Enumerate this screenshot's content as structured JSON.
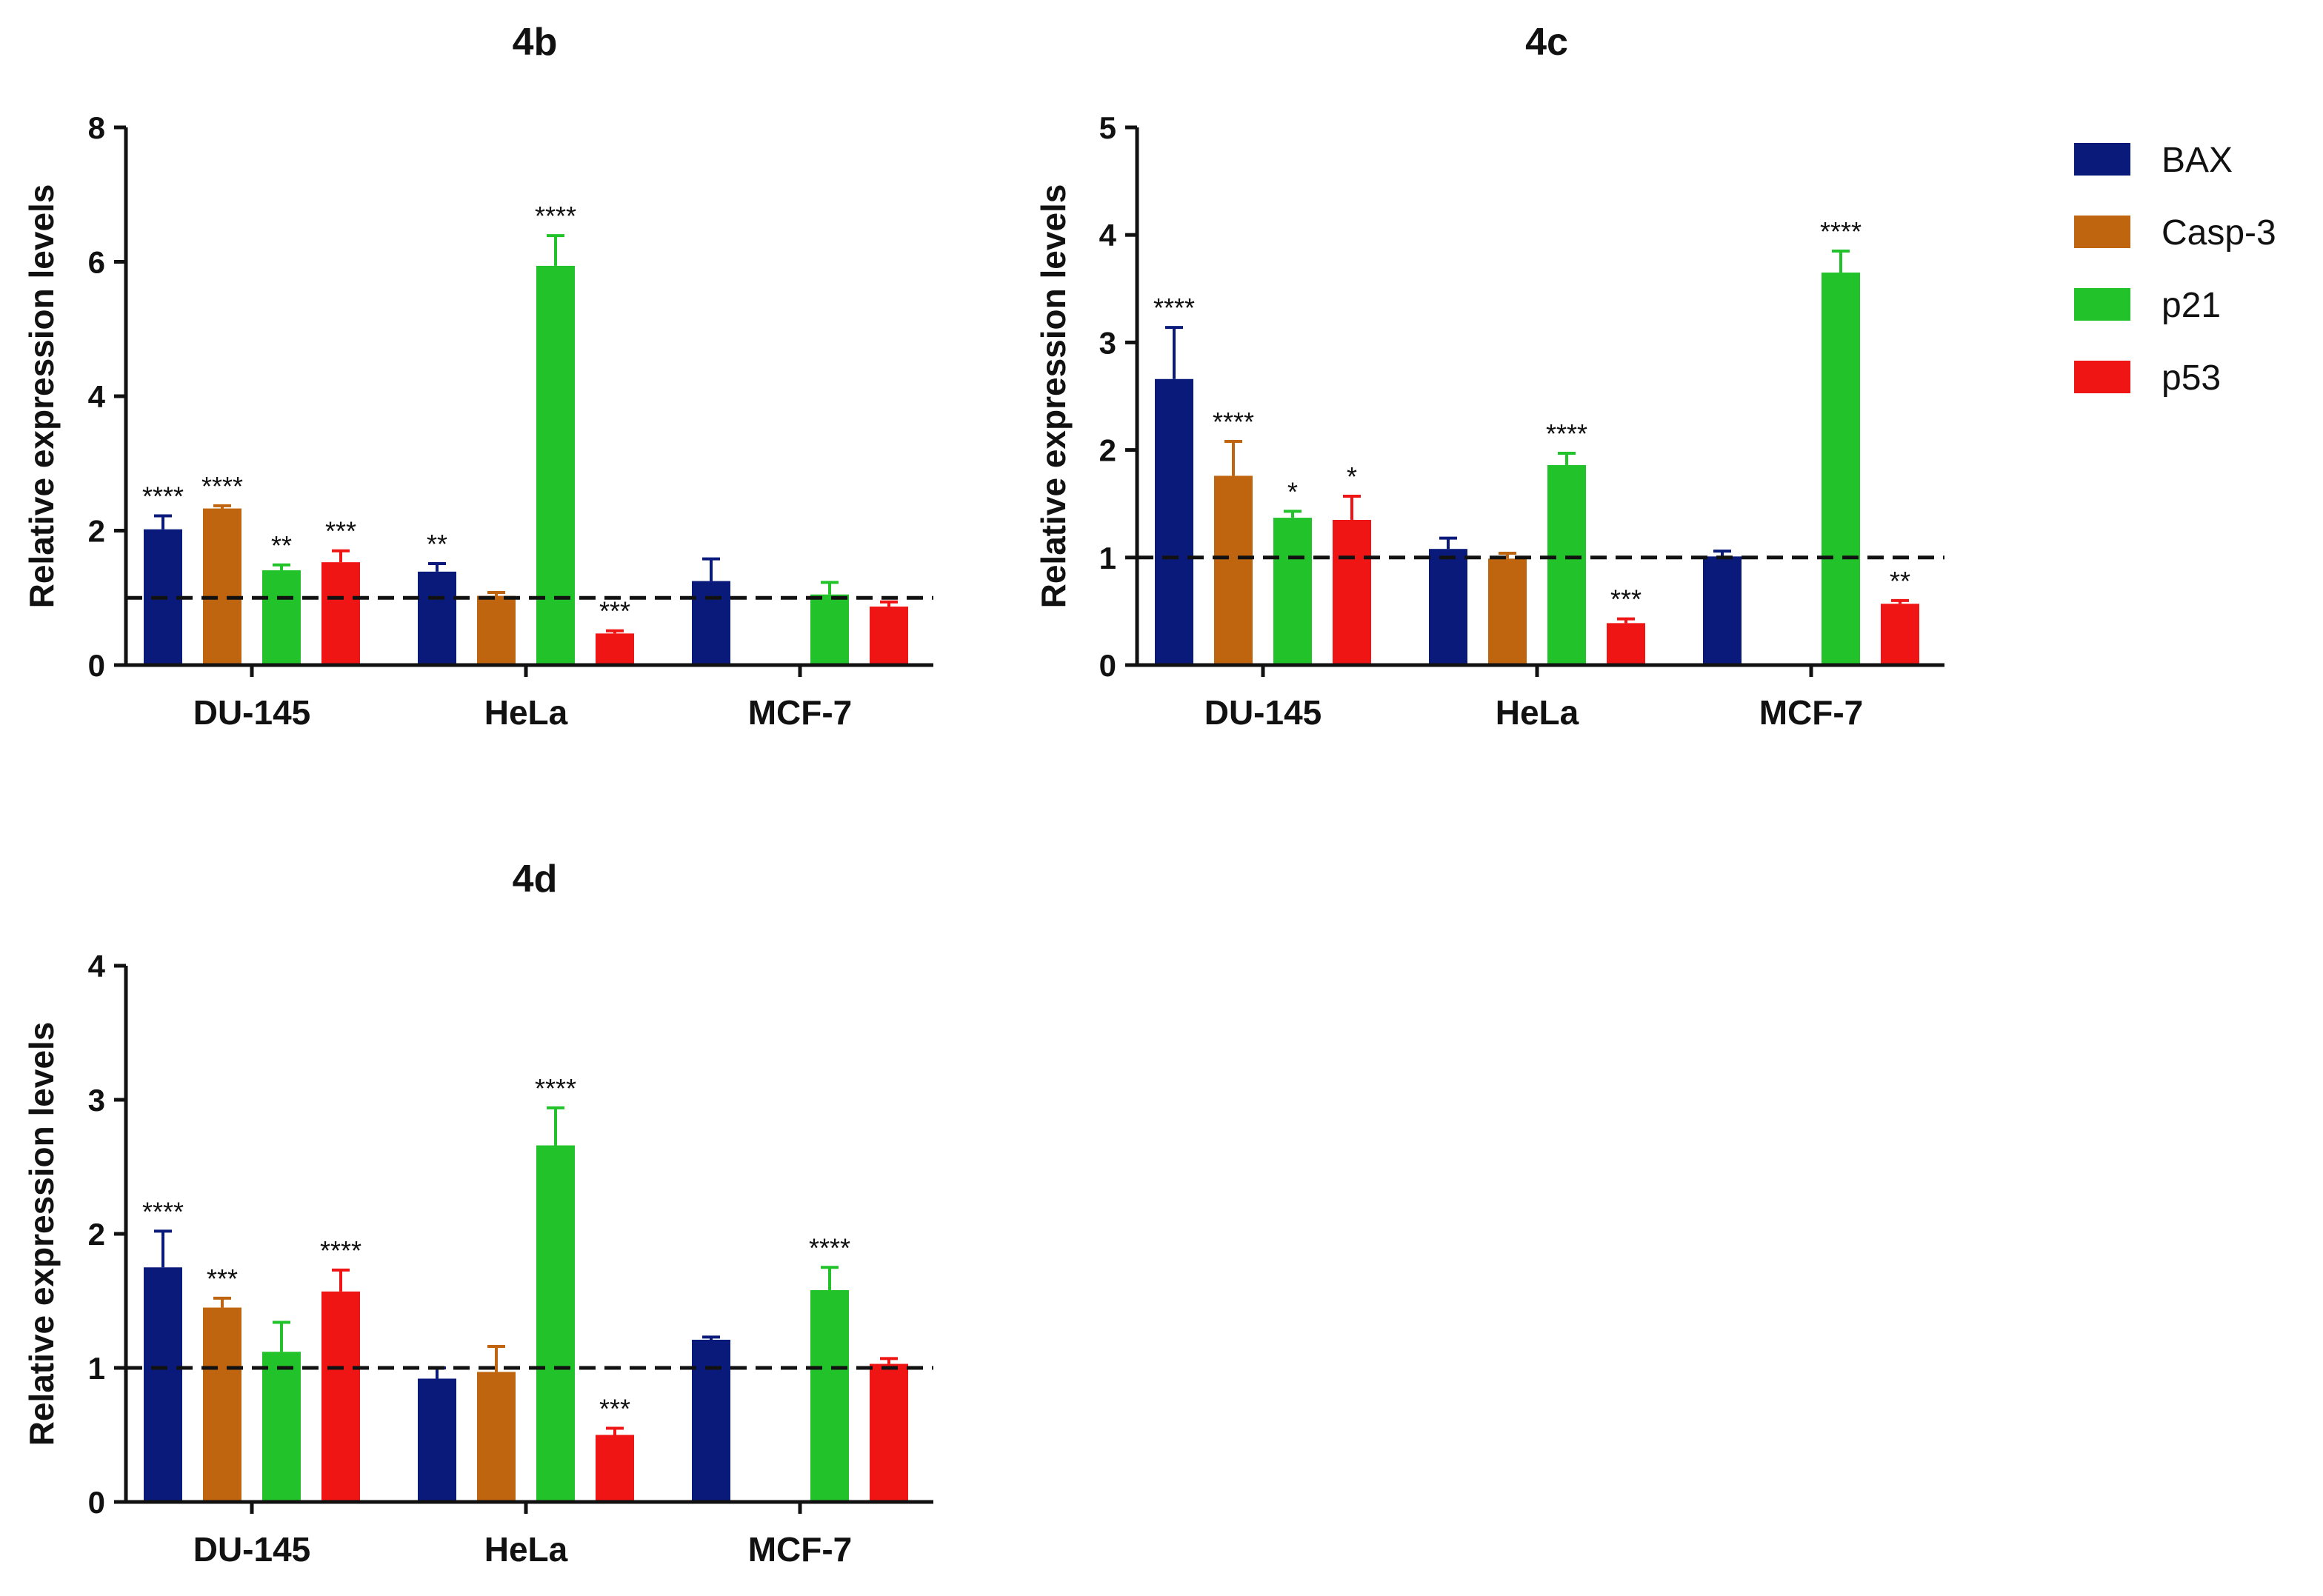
{
  "chart_data": [
    {
      "type": "bar",
      "title": "4b",
      "xlabel": "",
      "ylabel": "Relative expression levels",
      "ylim": [
        0,
        8
      ],
      "yticks": [
        0,
        2,
        4,
        6,
        8
      ],
      "reference_line": 1,
      "categories": [
        "DU-145",
        "HeLa",
        "MCF-7"
      ],
      "series": [
        {
          "name": "BAX",
          "values": [
            2.02,
            1.39,
            1.25
          ],
          "errors": [
            0.2,
            0.12,
            0.33
          ],
          "significance": [
            "****",
            "**",
            ""
          ]
        },
        {
          "name": "Casp-3",
          "values": [
            2.33,
            1.03,
            null
          ],
          "errors": [
            0.04,
            0.05,
            null
          ],
          "significance": [
            "****",
            "",
            ""
          ]
        },
        {
          "name": "p21",
          "values": [
            1.41,
            5.94,
            1.05
          ],
          "errors": [
            0.08,
            0.45,
            0.18
          ],
          "significance": [
            "**",
            "****",
            ""
          ]
        },
        {
          "name": "p53",
          "values": [
            1.53,
            0.47,
            0.87
          ],
          "errors": [
            0.17,
            0.04,
            0.07
          ],
          "significance": [
            "***",
            "***",
            ""
          ]
        }
      ]
    },
    {
      "type": "bar",
      "title": "4c",
      "xlabel": "",
      "ylabel": "Relative expression levels",
      "ylim": [
        0,
        5
      ],
      "yticks": [
        0,
        1,
        2,
        3,
        4,
        5
      ],
      "reference_line": 1,
      "categories": [
        "DU-145",
        "HeLa",
        "MCF-7"
      ],
      "series": [
        {
          "name": "BAX",
          "values": [
            2.66,
            1.08,
            1.01
          ],
          "errors": [
            0.48,
            0.1,
            0.05
          ],
          "significance": [
            "****",
            "",
            ""
          ]
        },
        {
          "name": "Casp-3",
          "values": [
            1.76,
            0.99,
            null
          ],
          "errors": [
            0.32,
            0.05,
            null
          ],
          "significance": [
            "****",
            "",
            ""
          ]
        },
        {
          "name": "p21",
          "values": [
            1.37,
            1.86,
            3.65
          ],
          "errors": [
            0.06,
            0.11,
            0.2
          ],
          "significance": [
            "*",
            "****",
            "****"
          ]
        },
        {
          "name": "p53",
          "values": [
            1.35,
            0.39,
            0.57
          ],
          "errors": [
            0.22,
            0.04,
            0.03
          ],
          "significance": [
            "*",
            "***",
            "**"
          ]
        }
      ]
    },
    {
      "type": "bar",
      "title": "4d",
      "xlabel": "",
      "ylabel": "Relative expression levels",
      "ylim": [
        0,
        4
      ],
      "yticks": [
        0,
        1,
        2,
        3,
        4
      ],
      "reference_line": 1,
      "categories": [
        "DU-145",
        "HeLa",
        "MCF-7"
      ],
      "series": [
        {
          "name": "BAX",
          "values": [
            1.75,
            0.92,
            1.21
          ],
          "errors": [
            0.27,
            0.08,
            0.02
          ],
          "significance": [
            "****",
            "",
            ""
          ]
        },
        {
          "name": "Casp-3",
          "values": [
            1.45,
            0.97,
            null
          ],
          "errors": [
            0.07,
            0.19,
            null
          ],
          "significance": [
            "***",
            "",
            ""
          ]
        },
        {
          "name": "p21",
          "values": [
            1.12,
            2.66,
            1.58
          ],
          "errors": [
            0.22,
            0.28,
            0.17
          ],
          "significance": [
            "",
            "****",
            "****"
          ]
        },
        {
          "name": "p53",
          "values": [
            1.57,
            0.5,
            1.03
          ],
          "errors": [
            0.16,
            0.05,
            0.04
          ],
          "significance": [
            "****",
            "***",
            ""
          ]
        }
      ]
    }
  ],
  "legend": {
    "items": [
      {
        "label": "BAX",
        "color": "#0a1a7a"
      },
      {
        "label": "Casp-3",
        "color": "#c0650f"
      },
      {
        "label": "p21",
        "color": "#22c32a"
      },
      {
        "label": "p53",
        "color": "#f01515"
      }
    ]
  }
}
